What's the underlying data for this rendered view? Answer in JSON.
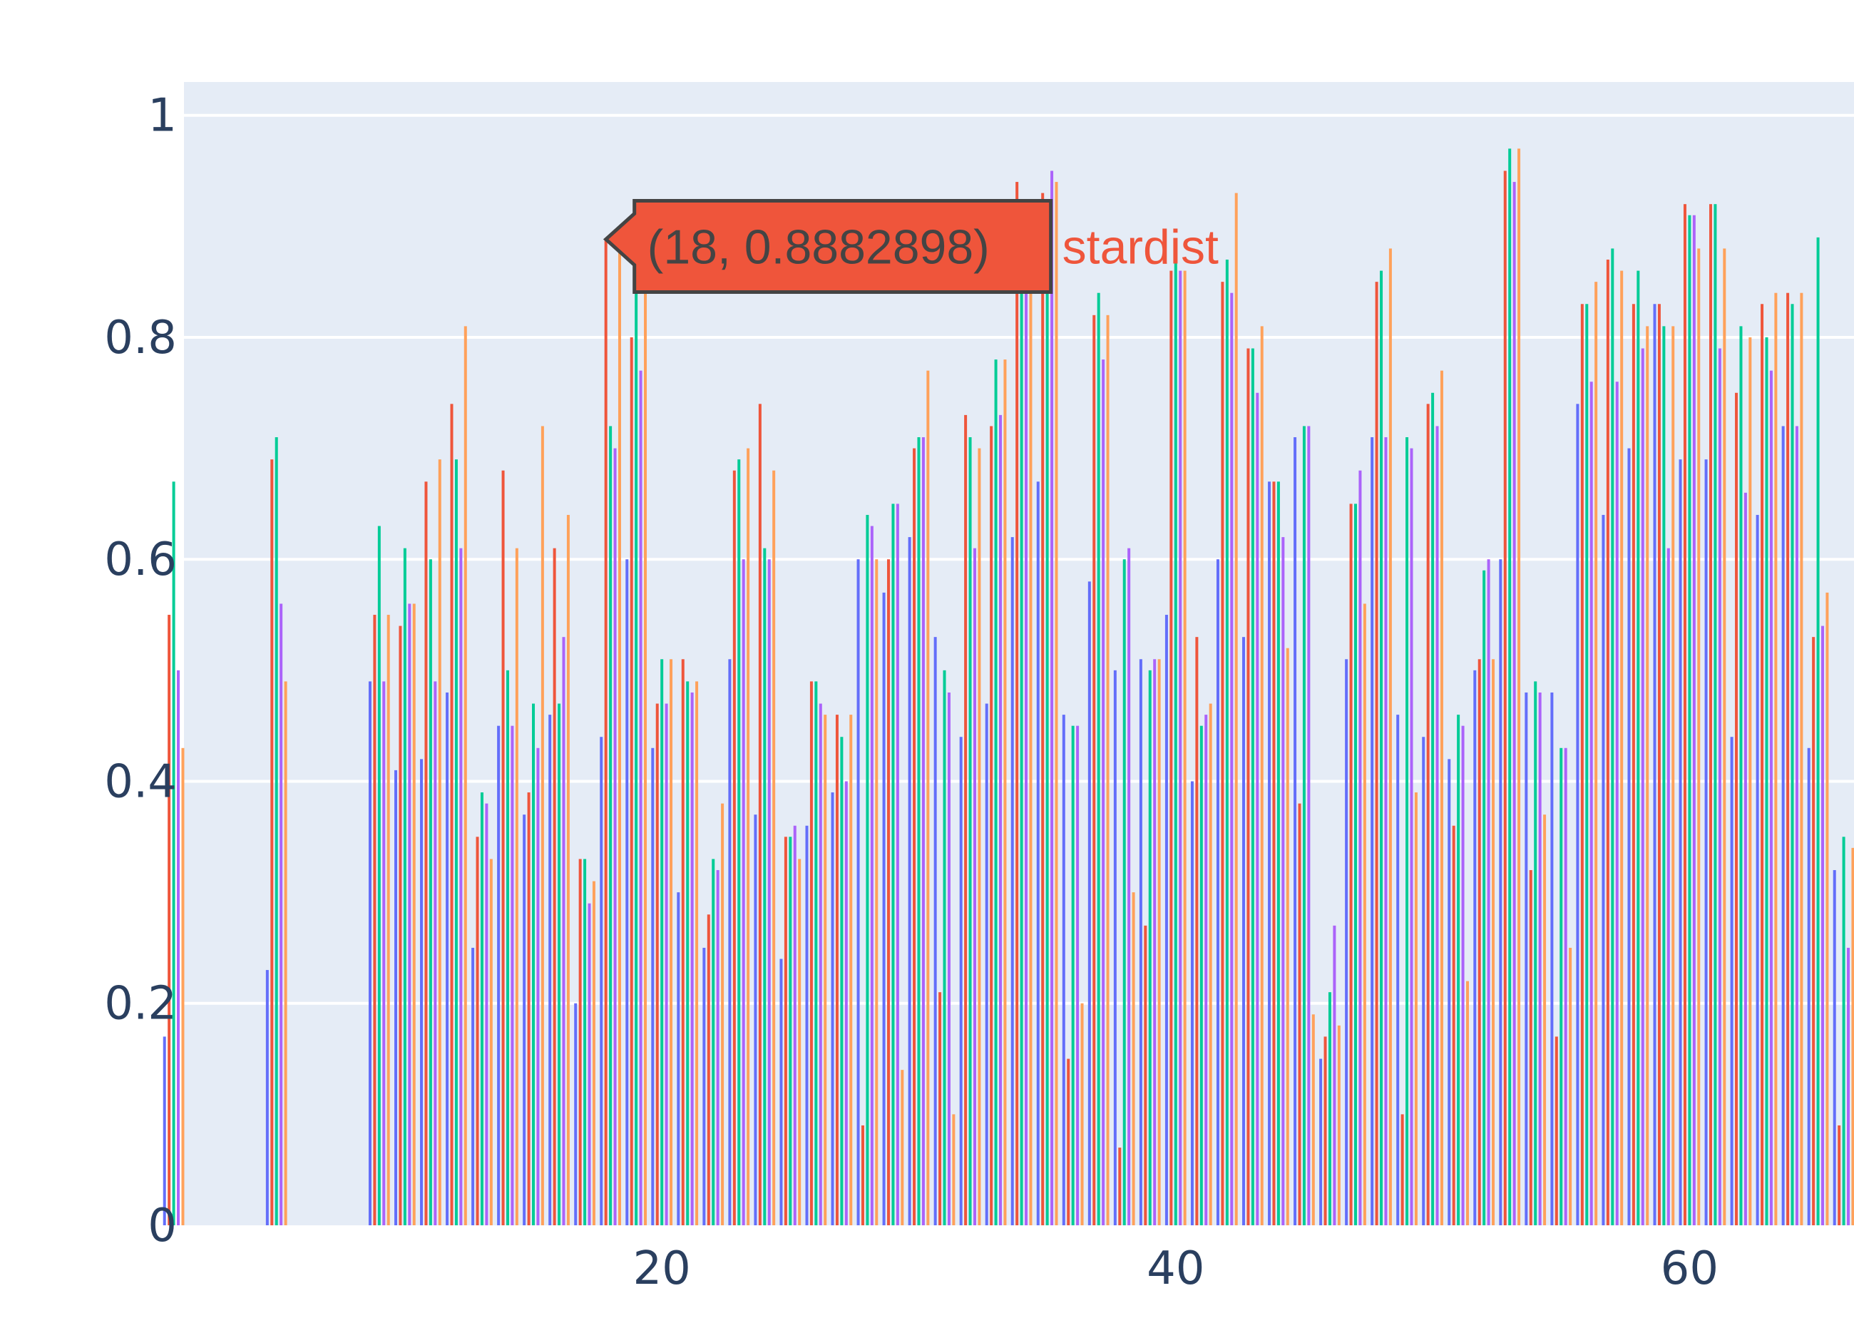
{
  "chart_data": {
    "type": "bar",
    "x_range": [
      1.4,
      66.4
    ],
    "y_range": [
      0,
      1.03
    ],
    "x_ticks": [
      {
        "value": 20,
        "label": "20"
      },
      {
        "value": 40,
        "label": "40"
      },
      {
        "value": 60,
        "label": "60"
      }
    ],
    "y_ticks": [
      {
        "value": 0,
        "label": "0"
      },
      {
        "value": 0.2,
        "label": "0.2"
      },
      {
        "value": 0.4,
        "label": "0.4"
      },
      {
        "value": 0.6,
        "label": "0.6"
      },
      {
        "value": 0.8,
        "label": "0.8"
      },
      {
        "value": 1,
        "label": "1"
      }
    ],
    "grid": true,
    "plot_bgcolor": "#e5ecf6",
    "series": [
      {
        "color": "#636efa",
        "values": [
          [
            1,
            0.17
          ],
          [
            5,
            0.23
          ],
          [
            9,
            0.49
          ],
          [
            10,
            0.41
          ],
          [
            11,
            0.42
          ],
          [
            12,
            0.48
          ],
          [
            13,
            0.25
          ],
          [
            14,
            0.45
          ],
          [
            15,
            0.37
          ],
          [
            16,
            0.46
          ],
          [
            17,
            0.2
          ],
          [
            18,
            0.44
          ],
          [
            19,
            0.6
          ],
          [
            20,
            0.43
          ],
          [
            21,
            0.3
          ],
          [
            22,
            0.25
          ],
          [
            23,
            0.51
          ],
          [
            24,
            0.37
          ],
          [
            25,
            0.24
          ],
          [
            26,
            0.36
          ],
          [
            27,
            0.39
          ],
          [
            28,
            0.6
          ],
          [
            29,
            0.57
          ],
          [
            30,
            0.62
          ],
          [
            31,
            0.53
          ],
          [
            32,
            0.44
          ],
          [
            33,
            0.47
          ],
          [
            34,
            0.62
          ],
          [
            35,
            0.67
          ],
          [
            36,
            0.46
          ],
          [
            37,
            0.58
          ],
          [
            38,
            0.5
          ],
          [
            39,
            0.51
          ],
          [
            40,
            0.55
          ],
          [
            41,
            0.4
          ],
          [
            42,
            0.6
          ],
          [
            43,
            0.53
          ],
          [
            44,
            0.67
          ],
          [
            45,
            0.71
          ],
          [
            46,
            0.15
          ],
          [
            47,
            0.51
          ],
          [
            48,
            0.71
          ],
          [
            49,
            0.46
          ],
          [
            50,
            0.44
          ],
          [
            51,
            0.42
          ],
          [
            52,
            0.5
          ],
          [
            53,
            0.6
          ],
          [
            54,
            0.48
          ],
          [
            55,
            0.48
          ],
          [
            56,
            0.74
          ],
          [
            57,
            0.64
          ],
          [
            58,
            0.7
          ],
          [
            59,
            0.83
          ],
          [
            60,
            0.69
          ],
          [
            61,
            0.69
          ],
          [
            62,
            0.44
          ],
          [
            63,
            0.64
          ],
          [
            64,
            0.72
          ],
          [
            65,
            0.43
          ],
          [
            66,
            0.32
          ]
        ]
      },
      {
        "name": "stardist",
        "color": "#ef553b",
        "values": [
          [
            1,
            0.55
          ],
          [
            5,
            0.69
          ],
          [
            9,
            0.55
          ],
          [
            10,
            0.54
          ],
          [
            11,
            0.67
          ],
          [
            12,
            0.74
          ],
          [
            13,
            0.35
          ],
          [
            14,
            0.68
          ],
          [
            15,
            0.39
          ],
          [
            16,
            0.61
          ],
          [
            17,
            0.33
          ],
          [
            18,
            0.8882898
          ],
          [
            19,
            0.8
          ],
          [
            20,
            0.47
          ],
          [
            21,
            0.51
          ],
          [
            22,
            0.28
          ],
          [
            23,
            0.68
          ],
          [
            24,
            0.74
          ],
          [
            25,
            0.35
          ],
          [
            26,
            0.49
          ],
          [
            27,
            0.46
          ],
          [
            28,
            0.09
          ],
          [
            29,
            0.6
          ],
          [
            30,
            0.7
          ],
          [
            31,
            0.21
          ],
          [
            32,
            0.73
          ],
          [
            33,
            0.72
          ],
          [
            34,
            0.94
          ],
          [
            35,
            0.93
          ],
          [
            36,
            0.15
          ],
          [
            37,
            0.82
          ],
          [
            38,
            0.07
          ],
          [
            39,
            0.27
          ],
          [
            40,
            0.86
          ],
          [
            41,
            0.53
          ],
          [
            42,
            0.85
          ],
          [
            43,
            0.79
          ],
          [
            44,
            0.67
          ],
          [
            45,
            0.38
          ],
          [
            46,
            0.17
          ],
          [
            47,
            0.65
          ],
          [
            48,
            0.85
          ],
          [
            49,
            0.1
          ],
          [
            50,
            0.74
          ],
          [
            51,
            0.36
          ],
          [
            52,
            0.51
          ],
          [
            53,
            0.95
          ],
          [
            54,
            0.32
          ],
          [
            55,
            0.17
          ],
          [
            56,
            0.83
          ],
          [
            57,
            0.87
          ],
          [
            58,
            0.83
          ],
          [
            59,
            0.83
          ],
          [
            60,
            0.92
          ],
          [
            61,
            0.92
          ],
          [
            62,
            0.75
          ],
          [
            63,
            0.83
          ],
          [
            64,
            0.84
          ],
          [
            65,
            0.53
          ],
          [
            66,
            0.09
          ]
        ]
      },
      {
        "color": "#00cc96",
        "values": [
          [
            1,
            0.67
          ],
          [
            5,
            0.71
          ],
          [
            9,
            0.63
          ],
          [
            10,
            0.61
          ],
          [
            11,
            0.6
          ],
          [
            12,
            0.69
          ],
          [
            13,
            0.39
          ],
          [
            14,
            0.5
          ],
          [
            15,
            0.47
          ],
          [
            16,
            0.47
          ],
          [
            17,
            0.33
          ],
          [
            18,
            0.72
          ],
          [
            19,
            0.86
          ],
          [
            20,
            0.51
          ],
          [
            21,
            0.49
          ],
          [
            22,
            0.33
          ],
          [
            23,
            0.69
          ],
          [
            24,
            0.61
          ],
          [
            25,
            0.35
          ],
          [
            26,
            0.49
          ],
          [
            27,
            0.44
          ],
          [
            28,
            0.64
          ],
          [
            29,
            0.65
          ],
          [
            30,
            0.71
          ],
          [
            31,
            0.5
          ],
          [
            32,
            0.71
          ],
          [
            33,
            0.78
          ],
          [
            34,
            0.9
          ],
          [
            35,
            0.92
          ],
          [
            36,
            0.45
          ],
          [
            37,
            0.84
          ],
          [
            38,
            0.6
          ],
          [
            39,
            0.5
          ],
          [
            40,
            0.87
          ],
          [
            41,
            0.45
          ],
          [
            42,
            0.87
          ],
          [
            43,
            0.79
          ],
          [
            44,
            0.67
          ],
          [
            45,
            0.72
          ],
          [
            46,
            0.21
          ],
          [
            47,
            0.65
          ],
          [
            48,
            0.86
          ],
          [
            49,
            0.71
          ],
          [
            50,
            0.75
          ],
          [
            51,
            0.46
          ],
          [
            52,
            0.59
          ],
          [
            53,
            0.97
          ],
          [
            54,
            0.49
          ],
          [
            55,
            0.43
          ],
          [
            56,
            0.83
          ],
          [
            57,
            0.88
          ],
          [
            58,
            0.86
          ],
          [
            59,
            0.81
          ],
          [
            60,
            0.91
          ],
          [
            61,
            0.92
          ],
          [
            62,
            0.81
          ],
          [
            63,
            0.8
          ],
          [
            64,
            0.83
          ],
          [
            65,
            0.89
          ],
          [
            66,
            0.35
          ]
        ]
      },
      {
        "color": "#ab63fa",
        "values": [
          [
            1,
            0.5
          ],
          [
            5,
            0.56
          ],
          [
            9,
            0.49
          ],
          [
            10,
            0.56
          ],
          [
            11,
            0.49
          ],
          [
            12,
            0.61
          ],
          [
            13,
            0.38
          ],
          [
            14,
            0.45
          ],
          [
            15,
            0.43
          ],
          [
            16,
            0.53
          ],
          [
            17,
            0.29
          ],
          [
            18,
            0.7
          ],
          [
            19,
            0.77
          ],
          [
            20,
            0.47
          ],
          [
            21,
            0.48
          ],
          [
            22,
            0.32
          ],
          [
            23,
            0.6
          ],
          [
            24,
            0.6
          ],
          [
            25,
            0.36
          ],
          [
            26,
            0.47
          ],
          [
            27,
            0.4
          ],
          [
            28,
            0.63
          ],
          [
            29,
            0.65
          ],
          [
            30,
            0.71
          ],
          [
            31,
            0.48
          ],
          [
            32,
            0.61
          ],
          [
            33,
            0.73
          ],
          [
            34,
            0.86
          ],
          [
            35,
            0.95
          ],
          [
            36,
            0.45
          ],
          [
            37,
            0.78
          ],
          [
            38,
            0.61
          ],
          [
            39,
            0.51
          ],
          [
            40,
            0.86
          ],
          [
            41,
            0.46
          ],
          [
            42,
            0.84
          ],
          [
            43,
            0.75
          ],
          [
            44,
            0.62
          ],
          [
            45,
            0.72
          ],
          [
            46,
            0.27
          ],
          [
            47,
            0.68
          ],
          [
            48,
            0.71
          ],
          [
            49,
            0.7
          ],
          [
            50,
            0.72
          ],
          [
            51,
            0.45
          ],
          [
            52,
            0.6
          ],
          [
            53,
            0.94
          ],
          [
            54,
            0.48
          ],
          [
            55,
            0.43
          ],
          [
            56,
            0.76
          ],
          [
            57,
            0.76
          ],
          [
            58,
            0.79
          ],
          [
            59,
            0.61
          ],
          [
            60,
            0.91
          ],
          [
            61,
            0.79
          ],
          [
            62,
            0.66
          ],
          [
            63,
            0.77
          ],
          [
            64,
            0.72
          ],
          [
            65,
            0.54
          ],
          [
            66,
            0.25
          ]
        ]
      },
      {
        "color": "#ffa15a",
        "values": [
          [
            1,
            0.43
          ],
          [
            5,
            0.49
          ],
          [
            9,
            0.55
          ],
          [
            10,
            0.56
          ],
          [
            11,
            0.69
          ],
          [
            12,
            0.81
          ],
          [
            13,
            0.33
          ],
          [
            14,
            0.61
          ],
          [
            15,
            0.72
          ],
          [
            16,
            0.64
          ],
          [
            17,
            0.31
          ],
          [
            18,
            0.88
          ],
          [
            19,
            0.88
          ],
          [
            20,
            0.51
          ],
          [
            21,
            0.49
          ],
          [
            22,
            0.38
          ],
          [
            23,
            0.7
          ],
          [
            24,
            0.68
          ],
          [
            25,
            0.33
          ],
          [
            26,
            0.46
          ],
          [
            27,
            0.46
          ],
          [
            28,
            0.6
          ],
          [
            29,
            0.14
          ],
          [
            30,
            0.77
          ],
          [
            31,
            0.1
          ],
          [
            32,
            0.7
          ],
          [
            33,
            0.78
          ],
          [
            34,
            0.88
          ],
          [
            35,
            0.94
          ],
          [
            36,
            0.2
          ],
          [
            37,
            0.82
          ],
          [
            38,
            0.3
          ],
          [
            39,
            0.51
          ],
          [
            40,
            0.86
          ],
          [
            41,
            0.47
          ],
          [
            42,
            0.93
          ],
          [
            43,
            0.81
          ],
          [
            44,
            0.52
          ],
          [
            45,
            0.19
          ],
          [
            46,
            0.18
          ],
          [
            47,
            0.56
          ],
          [
            48,
            0.88
          ],
          [
            49,
            0.39
          ],
          [
            50,
            0.77
          ],
          [
            51,
            0.22
          ],
          [
            52,
            0.51
          ],
          [
            53,
            0.97
          ],
          [
            54,
            0.37
          ],
          [
            55,
            0.25
          ],
          [
            56,
            0.85
          ],
          [
            57,
            0.86
          ],
          [
            58,
            0.81
          ],
          [
            59,
            0.81
          ],
          [
            60,
            0.88
          ],
          [
            61,
            0.88
          ],
          [
            62,
            0.8
          ],
          [
            63,
            0.84
          ],
          [
            64,
            0.84
          ],
          [
            65,
            0.57
          ],
          [
            66,
            0.34
          ]
        ]
      }
    ],
    "hover": {
      "x": 18,
      "y": 0.8882898,
      "text": "(18, 0.8882898)",
      "series_name": "stardist"
    }
  }
}
